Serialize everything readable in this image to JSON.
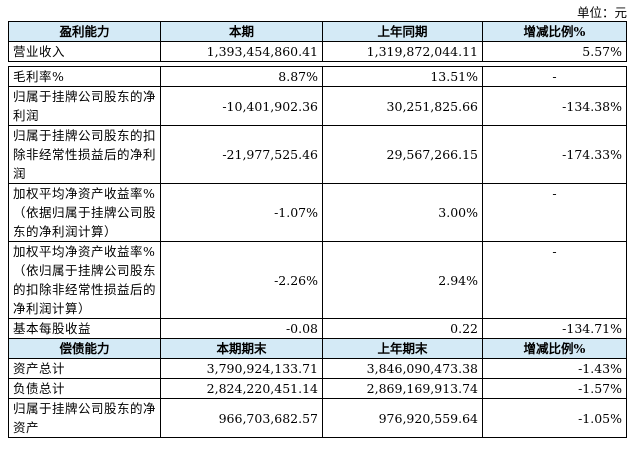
{
  "unit_label": "单位：元",
  "section1": {
    "headers": [
      "盈利能力",
      "本期",
      "上年同期",
      "增减比例%"
    ],
    "first_row": {
      "label": "营业收入",
      "current": "1,393,454,860.41",
      "prior": "1,319,872,044.11",
      "change": "5.57%"
    },
    "rows": [
      {
        "label": "毛利率%",
        "current": "8.87%",
        "prior": "13.51%",
        "change": "-"
      },
      {
        "label": "归属于挂牌公司股东的净利润",
        "current": "-10,401,902.36",
        "prior": "30,251,825.66",
        "change": "-134.38%"
      },
      {
        "label": "归属于挂牌公司股东的扣除非经常性损益后的净利润",
        "current": "-21,977,525.46",
        "prior": "29,567,266.15",
        "change": "-174.33%"
      },
      {
        "label": "加权平均净资产收益率%（依据归属于挂牌公司股东的净利润计算）",
        "current": "-1.07%",
        "prior": "3.00%",
        "change": "-"
      },
      {
        "label": "加权平均净资产收益率%（依归属于挂牌公司股东的扣除非经常性损益后的净利润计算）",
        "current": "-2.26%",
        "prior": "2.94%",
        "change": "-"
      },
      {
        "label": "基本每股收益",
        "current": "-0.08",
        "prior": "0.22",
        "change": "-134.71%"
      }
    ]
  },
  "section2": {
    "headers": [
      "偿债能力",
      "本期期末",
      "上年期末",
      "增减比例%"
    ],
    "rows": [
      {
        "label": "资产总计",
        "current": "3,790,924,133.71",
        "prior": "3,846,090,473.38",
        "change": "-1.43%"
      },
      {
        "label": "负债总计",
        "current": "2,824,220,451.14",
        "prior": "2,869,169,913.74",
        "change": "-1.57%"
      },
      {
        "label": "归属于挂牌公司股东的净资产",
        "current": "966,703,682.57",
        "prior": "976,920,559.64",
        "change": "-1.05%"
      }
    ]
  }
}
